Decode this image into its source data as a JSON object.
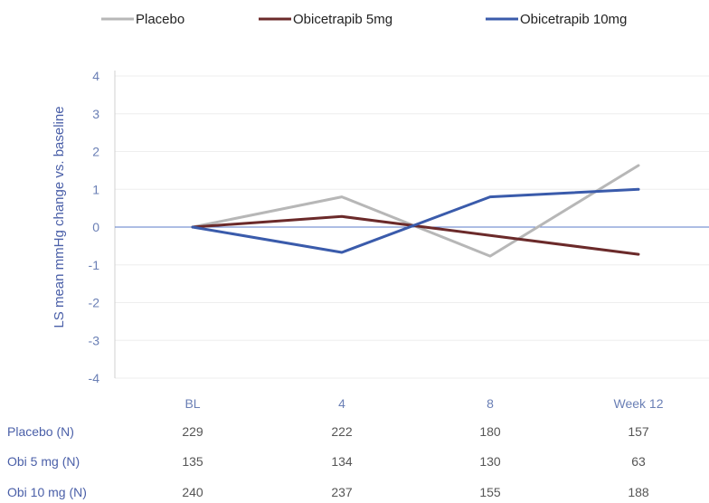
{
  "chart_data": {
    "type": "line",
    "title": "",
    "ylabel": "LS mean mmHg change vs. baseline",
    "xlabel": "",
    "categories": [
      "BL",
      "4",
      "8",
      "Week 12"
    ],
    "ylim": [
      -4,
      4
    ],
    "yticks": [
      4,
      3,
      2,
      1,
      0,
      -1,
      -2,
      -3,
      -4
    ],
    "grid": true,
    "legend": "top",
    "series": [
      {
        "name": "Placebo",
        "color": "#b7b7b7",
        "values": [
          0,
          0.8,
          -0.77,
          1.63
        ]
      },
      {
        "name": "Obicetrapib 5mg",
        "color": "#6b2a2a",
        "values": [
          0,
          0.28,
          -0.22,
          -0.72
        ]
      },
      {
        "name": "Obicetrapib 10mg",
        "color": "#3a5bab",
        "values": [
          0,
          -0.67,
          0.8,
          1.0
        ]
      }
    ],
    "table": {
      "rows": [
        {
          "label": "Placebo (N)",
          "values": [
            "229",
            "222",
            "180",
            "157"
          ]
        },
        {
          "label": "Obi 5 mg (N)",
          "values": [
            "135",
            "134",
            "130",
            "63"
          ]
        },
        {
          "label": "Obi 10 mg (N)",
          "values": [
            "240",
            "237",
            "155",
            "188"
          ]
        }
      ]
    }
  }
}
